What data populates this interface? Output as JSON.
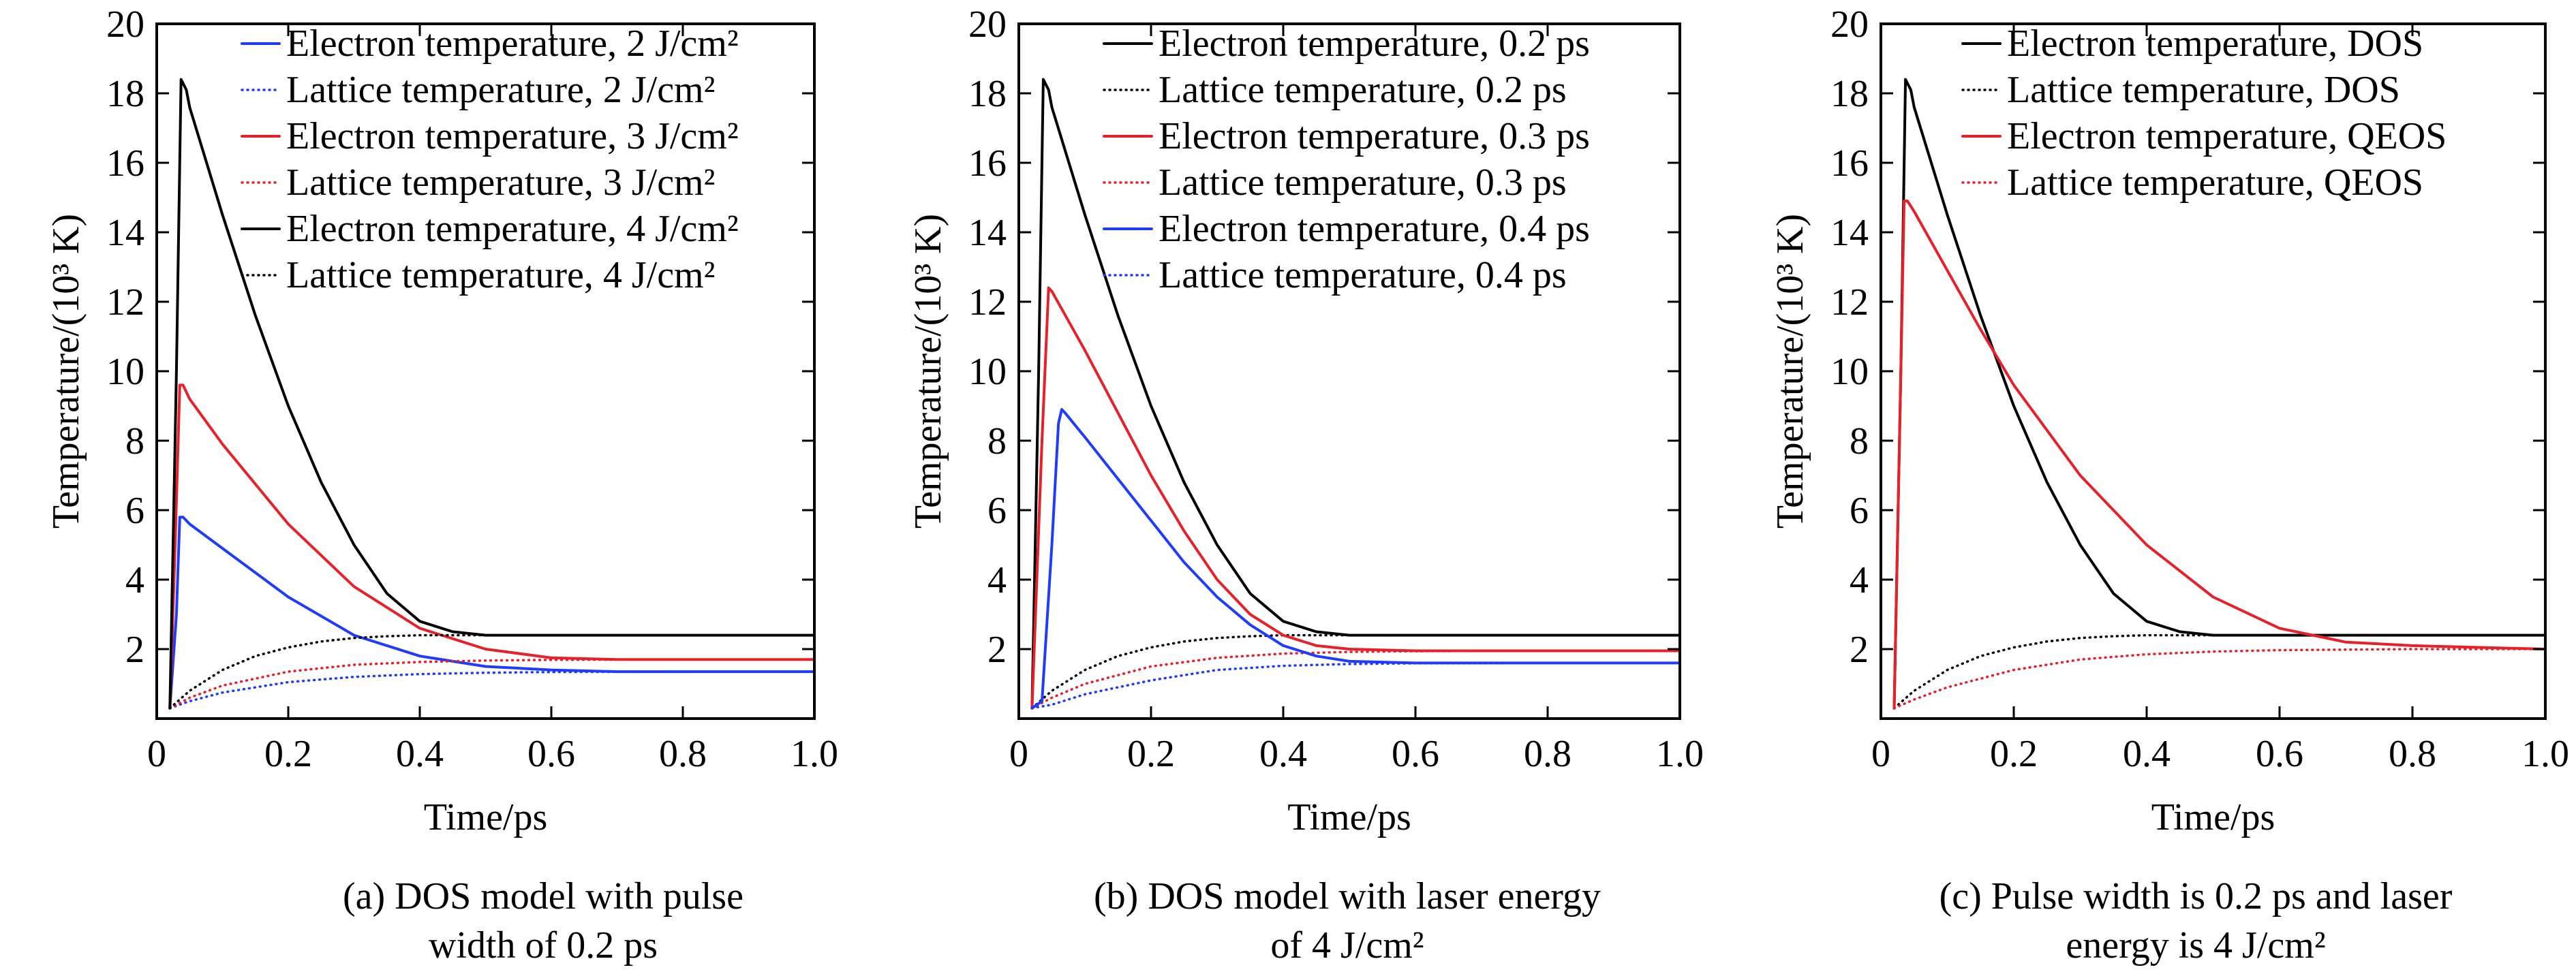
{
  "chart_data": [
    {
      "type": "line",
      "xlabel": "Time/ps",
      "ylabel": "Temperature/(10³ K)",
      "xlim": [
        0,
        1.0
      ],
      "ylim": [
        0,
        20
      ],
      "xticks": [
        "0",
        "0.2",
        "0.4",
        "0.6",
        "0.8",
        "1.0"
      ],
      "yticks": [
        "2",
        "4",
        "6",
        "8",
        "10",
        "12",
        "14",
        "16",
        "18",
        "20"
      ],
      "legend_position": "top-right",
      "caption_lines": [
        "(a) DOS model with pulse",
        "width of 0.2 ps"
      ],
      "series": [
        {
          "name": "Electron temperature, 2 J/cm²",
          "color": "#1f3bff",
          "dash": "solid",
          "x": [
            0.02,
            0.03,
            0.035,
            0.04,
            0.05,
            0.1,
            0.2,
            0.3,
            0.4,
            0.5,
            0.6,
            0.7,
            0.8,
            1.0
          ],
          "y": [
            0.3,
            3.0,
            5.8,
            5.8,
            5.6,
            4.9,
            3.5,
            2.4,
            1.8,
            1.5,
            1.4,
            1.35,
            1.35,
            1.35
          ]
        },
        {
          "name": "Lattice temperature, 2 J/cm²",
          "color": "#1f3bff",
          "dash": "dotted",
          "x": [
            0.02,
            0.05,
            0.1,
            0.2,
            0.3,
            0.4,
            0.5,
            0.6,
            0.8,
            1.0
          ],
          "y": [
            0.3,
            0.5,
            0.75,
            1.05,
            1.2,
            1.28,
            1.32,
            1.34,
            1.35,
            1.35
          ]
        },
        {
          "name": "Electron temperature, 3 J/cm²",
          "color": "#e8202a",
          "dash": "solid",
          "x": [
            0.02,
            0.028,
            0.035,
            0.04,
            0.05,
            0.1,
            0.2,
            0.3,
            0.4,
            0.5,
            0.6,
            0.7,
            0.8,
            1.0
          ],
          "y": [
            0.3,
            5.0,
            9.6,
            9.6,
            9.2,
            7.9,
            5.6,
            3.8,
            2.6,
            2.0,
            1.75,
            1.7,
            1.7,
            1.7
          ]
        },
        {
          "name": "Lattice temperature, 3 J/cm²",
          "color": "#e8202a",
          "dash": "dotted",
          "x": [
            0.02,
            0.05,
            0.1,
            0.2,
            0.3,
            0.4,
            0.5,
            0.6,
            0.8,
            1.0
          ],
          "y": [
            0.3,
            0.6,
            0.95,
            1.35,
            1.55,
            1.63,
            1.67,
            1.69,
            1.7,
            1.7
          ]
        },
        {
          "name": "Electron temperature, 4 J/cm²",
          "color": "#000000",
          "dash": "solid",
          "x": [
            0.02,
            0.03,
            0.037,
            0.045,
            0.05,
            0.1,
            0.15,
            0.2,
            0.25,
            0.3,
            0.35,
            0.4,
            0.45,
            0.5,
            0.6,
            0.8,
            1.0
          ],
          "y": [
            0.3,
            10.0,
            18.4,
            18.1,
            17.6,
            14.5,
            11.6,
            9.0,
            6.8,
            5.0,
            3.6,
            2.8,
            2.5,
            2.4,
            2.4,
            2.4,
            2.4
          ]
        },
        {
          "name": "Lattice temperature, 4 J/cm²",
          "color": "#000000",
          "dash": "dotted",
          "x": [
            0.02,
            0.05,
            0.1,
            0.15,
            0.2,
            0.25,
            0.3,
            0.35,
            0.4,
            0.5,
            0.6,
            0.8,
            1.0
          ],
          "y": [
            0.3,
            0.8,
            1.4,
            1.8,
            2.05,
            2.22,
            2.32,
            2.37,
            2.4,
            2.4,
            2.4,
            2.4,
            2.4
          ]
        }
      ]
    },
    {
      "type": "line",
      "xlabel": "Time/ps",
      "ylabel": "Temperature/(10³ K)",
      "xlim": [
        0,
        1.0
      ],
      "ylim": [
        0,
        20
      ],
      "xticks": [
        "0",
        "0.2",
        "0.4",
        "0.6",
        "0.8",
        "1.0"
      ],
      "yticks": [
        "2",
        "4",
        "6",
        "8",
        "10",
        "12",
        "14",
        "16",
        "18",
        "20"
      ],
      "legend_position": "top-right",
      "caption_lines": [
        "(b) DOS model with laser energy",
        "of 4 J/cm²"
      ],
      "series": [
        {
          "name": "Electron temperature, 0.2 ps",
          "color": "#000000",
          "dash": "solid",
          "x": [
            0.02,
            0.03,
            0.037,
            0.045,
            0.05,
            0.1,
            0.15,
            0.2,
            0.25,
            0.3,
            0.35,
            0.4,
            0.45,
            0.5,
            0.6,
            0.8,
            1.0
          ],
          "y": [
            0.3,
            10.0,
            18.4,
            18.1,
            17.6,
            14.5,
            11.6,
            9.0,
            6.8,
            5.0,
            3.6,
            2.8,
            2.5,
            2.4,
            2.4,
            2.4,
            2.4
          ]
        },
        {
          "name": "Lattice temperature, 0.2 ps",
          "color": "#000000",
          "dash": "dotted",
          "x": [
            0.02,
            0.05,
            0.1,
            0.15,
            0.2,
            0.25,
            0.3,
            0.35,
            0.4,
            0.5,
            0.6,
            0.8,
            1.0
          ],
          "y": [
            0.3,
            0.8,
            1.4,
            1.8,
            2.05,
            2.22,
            2.32,
            2.37,
            2.4,
            2.4,
            2.4,
            2.4,
            2.4
          ]
        },
        {
          "name": "Electron temperature, 0.3 ps",
          "color": "#e8202a",
          "dash": "solid",
          "x": [
            0.02,
            0.035,
            0.045,
            0.05,
            0.1,
            0.15,
            0.2,
            0.25,
            0.3,
            0.35,
            0.4,
            0.45,
            0.5,
            0.6,
            0.8,
            1.0
          ],
          "y": [
            0.3,
            8.0,
            12.4,
            12.3,
            10.6,
            8.8,
            7.0,
            5.4,
            4.0,
            3.0,
            2.4,
            2.1,
            2.0,
            1.95,
            1.95,
            1.95
          ]
        },
        {
          "name": "Lattice temperature, 0.3 ps",
          "color": "#e8202a",
          "dash": "dotted",
          "x": [
            0.02,
            0.05,
            0.1,
            0.2,
            0.3,
            0.4,
            0.5,
            0.6,
            0.8,
            1.0
          ],
          "y": [
            0.3,
            0.6,
            1.0,
            1.5,
            1.75,
            1.87,
            1.92,
            1.94,
            1.95,
            1.95
          ]
        },
        {
          "name": "Electron temperature, 0.4 ps",
          "color": "#1f3bff",
          "dash": "solid",
          "x": [
            0.02,
            0.035,
            0.05,
            0.06,
            0.065,
            0.07,
            0.1,
            0.15,
            0.2,
            0.25,
            0.3,
            0.35,
            0.4,
            0.45,
            0.5,
            0.6,
            0.8,
            1.0
          ],
          "y": [
            0.3,
            0.5,
            5.0,
            8.5,
            8.9,
            8.8,
            8.1,
            6.9,
            5.7,
            4.5,
            3.5,
            2.7,
            2.1,
            1.8,
            1.65,
            1.6,
            1.6,
            1.6
          ]
        },
        {
          "name": "Lattice temperature, 0.4 ps",
          "color": "#1f3bff",
          "dash": "dotted",
          "x": [
            0.02,
            0.05,
            0.1,
            0.2,
            0.3,
            0.4,
            0.5,
            0.6,
            0.8,
            1.0
          ],
          "y": [
            0.3,
            0.4,
            0.7,
            1.1,
            1.4,
            1.52,
            1.57,
            1.59,
            1.6,
            1.6
          ]
        }
      ]
    },
    {
      "type": "line",
      "xlabel": "Time/ps",
      "ylabel": "Temperature/(10³ K)",
      "xlim": [
        0,
        1.0
      ],
      "ylim": [
        0,
        20
      ],
      "xticks": [
        "0",
        "0.2",
        "0.4",
        "0.6",
        "0.8",
        "1.0"
      ],
      "yticks": [
        "2",
        "4",
        "6",
        "8",
        "10",
        "12",
        "14",
        "16",
        "18",
        "20"
      ],
      "legend_position": "top-right",
      "caption_lines": [
        "(c) Pulse width is 0.2 ps and laser",
        "energy is 4 J/cm²"
      ],
      "series": [
        {
          "name": "Electron temperature, DOS",
          "color": "#000000",
          "dash": "solid",
          "x": [
            0.02,
            0.03,
            0.037,
            0.045,
            0.05,
            0.1,
            0.15,
            0.2,
            0.25,
            0.3,
            0.35,
            0.4,
            0.45,
            0.5,
            0.6,
            0.8,
            1.0
          ],
          "y": [
            0.3,
            10.0,
            18.4,
            18.1,
            17.6,
            14.5,
            11.6,
            9.0,
            6.8,
            5.0,
            3.6,
            2.8,
            2.5,
            2.4,
            2.4,
            2.4,
            2.4
          ]
        },
        {
          "name": "Lattice temperature, DOS",
          "color": "#000000",
          "dash": "dotted",
          "x": [
            0.02,
            0.05,
            0.1,
            0.15,
            0.2,
            0.25,
            0.3,
            0.35,
            0.4,
            0.5,
            0.6,
            0.8,
            1.0
          ],
          "y": [
            0.3,
            0.8,
            1.4,
            1.8,
            2.05,
            2.22,
            2.32,
            2.37,
            2.4,
            2.4,
            2.4,
            2.4,
            2.4
          ]
        },
        {
          "name": "Electron temperature, QEOS",
          "color": "#e8202a",
          "dash": "solid",
          "x": [
            0.02,
            0.028,
            0.035,
            0.04,
            0.05,
            0.1,
            0.15,
            0.2,
            0.3,
            0.4,
            0.5,
            0.6,
            0.7,
            0.8,
            0.9,
            1.0
          ],
          "y": [
            0.3,
            8.0,
            14.9,
            14.9,
            14.6,
            12.9,
            11.2,
            9.6,
            7.0,
            5.0,
            3.5,
            2.6,
            2.2,
            2.1,
            2.05,
            2.0
          ]
        },
        {
          "name": "Lattice temperature, QEOS",
          "color": "#e8202a",
          "dash": "dotted",
          "x": [
            0.02,
            0.05,
            0.1,
            0.2,
            0.3,
            0.4,
            0.5,
            0.6,
            0.8,
            1.0
          ],
          "y": [
            0.3,
            0.55,
            0.9,
            1.4,
            1.7,
            1.85,
            1.93,
            1.97,
            2.0,
            2.0
          ]
        }
      ]
    }
  ]
}
